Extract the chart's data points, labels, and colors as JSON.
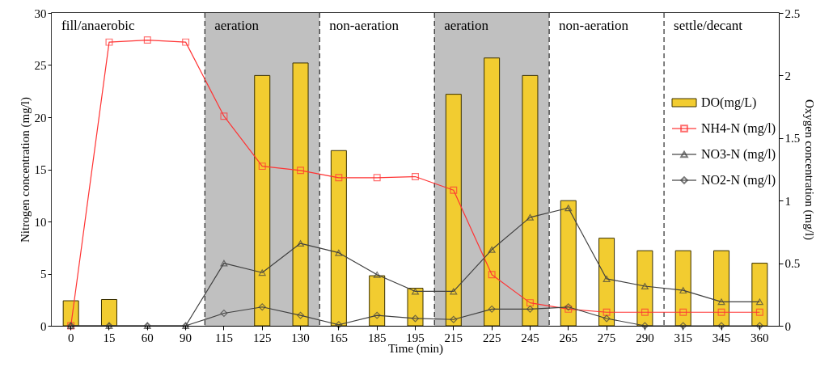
{
  "chart_data": {
    "type": "line",
    "xlabel": "Time (min)",
    "ylabel": "Nitrogen concentration (mg/l)",
    "y2label": "Oxygen  concentration (mg/l)",
    "categories": [
      "0",
      "15",
      "60",
      "90",
      "115",
      "125",
      "130",
      "165",
      "185",
      "195",
      "215",
      "225",
      "245",
      "265",
      "275",
      "290",
      "315",
      "345",
      "360"
    ],
    "series": [
      {
        "name": "DO(mg/L)",
        "type": "bar",
        "axis": "y2",
        "color": "#f2cc30",
        "values": [
          0.2,
          0.21,
          null,
          null,
          null,
          2.0,
          2.1,
          1.4,
          0.4,
          0.3,
          1.85,
          2.14,
          2.0,
          1.0,
          0.7,
          0.6,
          0.6,
          0.6,
          0.5
        ]
      },
      {
        "name": "NH4-N (mg/l)",
        "marker": "square",
        "color": "#ff3333",
        "values": [
          0,
          27.2,
          27.4,
          27.2,
          20.1,
          15.3,
          14.9,
          14.2,
          14.2,
          14.3,
          13.0,
          4.9,
          2.2,
          1.6,
          1.3,
          1.3,
          1.3,
          1.3,
          1.3
        ]
      },
      {
        "name": "NO3-N (mg/l)",
        "marker": "triangle",
        "color": "#404040",
        "values": [
          0,
          0,
          0,
          0,
          6.0,
          5.1,
          7.9,
          7.0,
          4.9,
          3.3,
          3.3,
          7.3,
          10.4,
          11.3,
          4.5,
          3.8,
          3.4,
          2.3,
          2.3
        ]
      },
      {
        "name": "NO2-N (mg/l)",
        "marker": "diamond",
        "color": "#404040",
        "values": [
          0,
          0,
          0,
          0,
          1.2,
          1.8,
          1.0,
          0.1,
          1.0,
          0.7,
          0.6,
          1.6,
          1.6,
          1.8,
          0.7,
          0,
          0,
          0,
          0
        ]
      }
    ],
    "ylim": [
      0,
      30
    ],
    "yticks": [
      0,
      5,
      10,
      15,
      20,
      25,
      30
    ],
    "y2lim": [
      0,
      2.5
    ],
    "y2ticks": [
      0,
      0.5,
      1,
      1.5,
      2,
      2.5
    ],
    "bands": [
      {
        "axis": "x",
        "from": "0",
        "to": "90",
        "label": "fill/anaerobic",
        "color": "#ffffff"
      },
      {
        "axis": "x",
        "from": "115",
        "to": "130",
        "label": "aeration",
        "color": "#c0c0c0"
      },
      {
        "axis": "x",
        "from": "165",
        "to": "195",
        "label": "non-aeration",
        "color": "#ffffff"
      },
      {
        "axis": "x",
        "from": "215",
        "to": "245",
        "label": "aeration",
        "color": "#c0c0c0"
      },
      {
        "axis": "x",
        "from": "265",
        "to": "290",
        "label": "non-aeration",
        "color": "#ffffff"
      },
      {
        "axis": "x",
        "from": "315",
        "to": "360",
        "label": "settle/decant",
        "color": "#ffffff"
      }
    ],
    "legend": "right",
    "grid": false,
    "line_style": "solid"
  }
}
